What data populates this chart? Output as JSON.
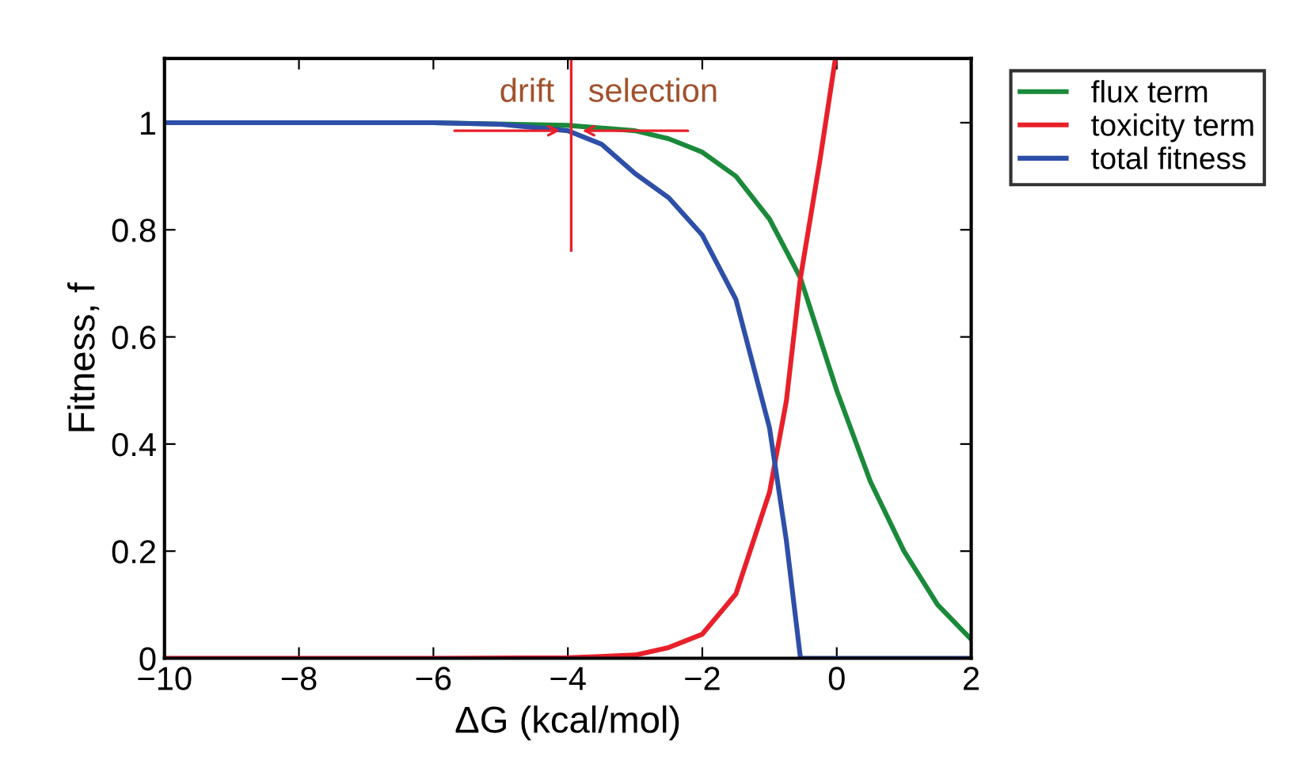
{
  "chart_data": {
    "type": "line",
    "xlabel": "ΔG (kcal/mol)",
    "ylabel": "Fitness, f",
    "xlim": [
      -10,
      2
    ],
    "ylim": [
      0,
      1.12
    ],
    "xticks": [
      -10,
      -8,
      -6,
      -4,
      -2,
      0,
      2
    ],
    "yticks": [
      0,
      0.2,
      0.4,
      0.6,
      0.8,
      1
    ],
    "series": [
      {
        "name": "flux term",
        "color": "#1a8a3a",
        "x": [
          -10,
          -6,
          -4,
          -3,
          -2.5,
          -2,
          -1.5,
          -1,
          -0.54,
          0,
          0.5,
          1,
          1.5,
          2
        ],
        "values": [
          1,
          1,
          0.995,
          0.985,
          0.97,
          0.945,
          0.9,
          0.82,
          0.71,
          0.5,
          0.33,
          0.2,
          0.1,
          0.035
        ]
      },
      {
        "name": "toxicity term",
        "color": "#e8202a",
        "x": [
          -10,
          -6,
          -4,
          -3,
          -2.5,
          -2,
          -1.5,
          -1,
          -0.75,
          -0.54,
          -0.25,
          -0.02
        ],
        "values": [
          0,
          0,
          0.001,
          0.006,
          0.02,
          0.045,
          0.12,
          0.31,
          0.48,
          0.71,
          0.93,
          1.12
        ]
      },
      {
        "name": "total fitness",
        "color": "#2e4fa8",
        "x": [
          -10,
          -6,
          -5,
          -4,
          -3.5,
          -3,
          -2.5,
          -2,
          -1.5,
          -1,
          -0.75,
          -0.54,
          2
        ],
        "values": [
          1,
          1,
          0.997,
          0.985,
          0.96,
          0.905,
          0.86,
          0.79,
          0.67,
          0.43,
          0.22,
          0,
          0
        ]
      }
    ],
    "ref_lines": [
      {
        "axis": "x",
        "value": -3.95,
        "color": "#e8202a"
      }
    ],
    "annotations": [
      {
        "text": "drift",
        "x": -3.95,
        "y": 0.985
      },
      {
        "text": "selection",
        "x": -3.95,
        "y": 0.985
      }
    ],
    "legend": "top right",
    "grid": false
  }
}
